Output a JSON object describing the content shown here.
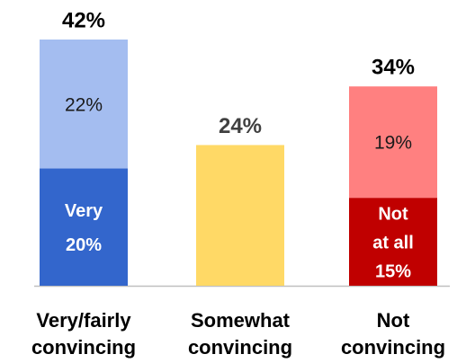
{
  "chart_data": {
    "type": "stacked_bar",
    "categories": [
      [
        "Very/fairly",
        "convincing"
      ],
      [
        "Somewhat",
        "convincing"
      ],
      [
        "Not",
        "convincing"
      ]
    ],
    "totals": [
      42,
      24,
      34
    ],
    "total_labels": [
      "42%",
      "24%",
      "34%"
    ],
    "bars": [
      {
        "segments": [
          {
            "name": [
              "Very"
            ],
            "value": 20,
            "value_label": "20%",
            "color": "#3366cc"
          },
          {
            "value": 22,
            "value_label": "22%",
            "color": "#a4bdf0"
          }
        ]
      },
      {
        "segments": [
          {
            "value": 24,
            "color": "#ffd966"
          }
        ]
      },
      {
        "segments": [
          {
            "name": [
              "Not",
              "at all"
            ],
            "value": 15,
            "value_label": "15%",
            "color": "#c00000"
          },
          {
            "value": 19,
            "value_label": "19%",
            "color": "#ff8080"
          }
        ]
      }
    ]
  }
}
